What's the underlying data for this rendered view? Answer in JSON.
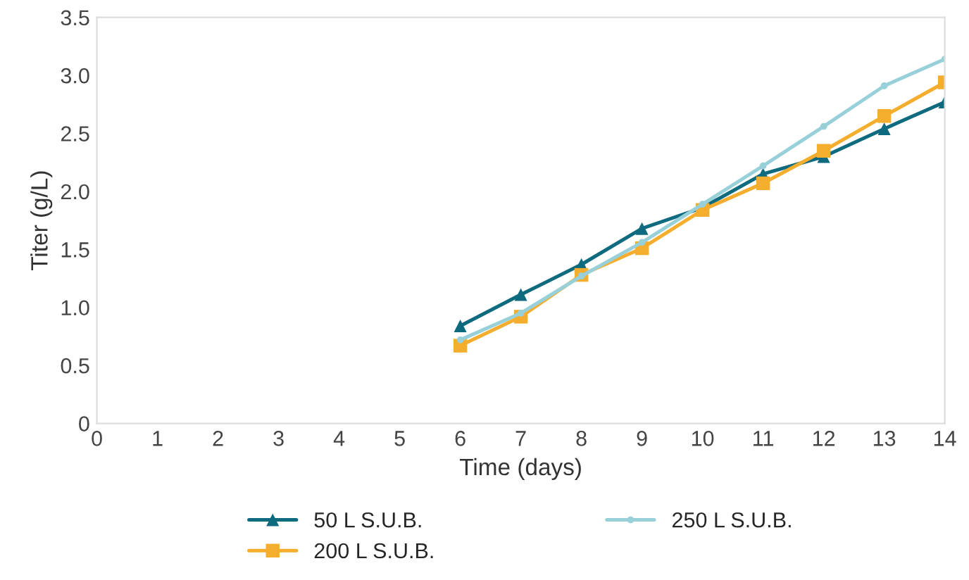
{
  "chart_data": {
    "type": "line",
    "xlabel": "Time (days)",
    "ylabel": "Titer (g/L)",
    "x": [
      6,
      7,
      8,
      9,
      10,
      11,
      12,
      13,
      14
    ],
    "xlim": [
      0,
      14
    ],
    "xticks": [
      0,
      1,
      2,
      3,
      4,
      5,
      6,
      7,
      8,
      9,
      10,
      11,
      12,
      13,
      14
    ],
    "ylim": [
      0,
      3.5
    ],
    "yticks": [
      0,
      0.5,
      {
        "value": 1,
        "label": "1.0"
      },
      1.5,
      {
        "value": 2,
        "label": "2.0"
      },
      2.5,
      {
        "value": 3,
        "label": "3.0"
      },
      3.5
    ],
    "grid": false,
    "legend": "bottom",
    "line_style": "solid",
    "series": [
      {
        "name": "50 L S.U.B.",
        "color": "#0e6b7f",
        "marker": "triangle",
        "values": [
          0.84,
          1.11,
          1.37,
          1.68,
          1.86,
          2.15,
          2.3,
          2.54,
          2.77
        ]
      },
      {
        "name": "200 L S.U.B.",
        "color": "#f5ad2e",
        "marker": "square",
        "values": [
          0.67,
          0.92,
          1.28,
          1.51,
          1.84,
          2.07,
          2.35,
          2.65,
          2.94
        ]
      },
      {
        "name": "250 L S.U.B.",
        "color": "#98d0da",
        "marker": "circle",
        "values": [
          0.72,
          0.95,
          1.27,
          1.56,
          1.89,
          2.22,
          2.56,
          2.91,
          3.14
        ]
      }
    ]
  }
}
